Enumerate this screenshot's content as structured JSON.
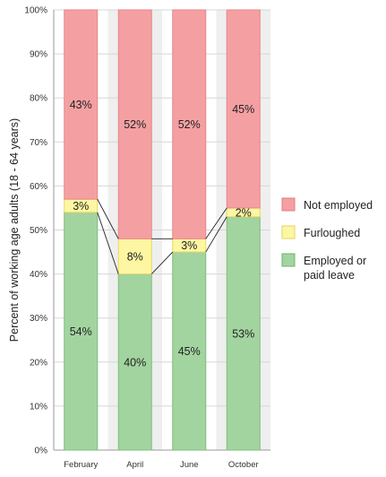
{
  "chart_data": {
    "type": "bar",
    "stacked": true,
    "categories": [
      "February",
      "April",
      "June",
      "October"
    ],
    "series": [
      {
        "name": "Employed or paid leave",
        "values": [
          54,
          40,
          45,
          53
        ],
        "labels": [
          "54%",
          "40%",
          "45%",
          "53%"
        ],
        "color": "#a2d4a0"
      },
      {
        "name": "Furloughed",
        "values": [
          3,
          8,
          3,
          2
        ],
        "labels": [
          "3%",
          "8%",
          "3%",
          "2%"
        ],
        "color": "#fdf6a3"
      },
      {
        "name": "Not employed",
        "values": [
          43,
          52,
          52,
          45
        ],
        "labels": [
          "43%",
          "52%",
          "52%",
          "45%"
        ],
        "color": "#f4a0a3"
      }
    ],
    "ylabel": "Percent of working age adults (18 - 64 years)",
    "xlabel": "",
    "ylim": [
      0,
      100
    ],
    "yticks": [
      "0%",
      "10%",
      "20%",
      "30%",
      "40%",
      "50%",
      "60%",
      "70%",
      "80%",
      "90%",
      "100%"
    ],
    "legend_position": "right",
    "legend": [
      {
        "lines": [
          "Not employed"
        ],
        "color": "#f4a0a3",
        "border": "#e07b80"
      },
      {
        "lines": [
          "Furloughed"
        ],
        "color": "#fdf6a3",
        "border": "#e6d45a"
      },
      {
        "lines": [
          "Employed or",
          "paid leave"
        ],
        "color": "#a2d4a0",
        "border": "#6fb36c"
      }
    ],
    "column_background": "#efefef",
    "connector_lines": true
  }
}
